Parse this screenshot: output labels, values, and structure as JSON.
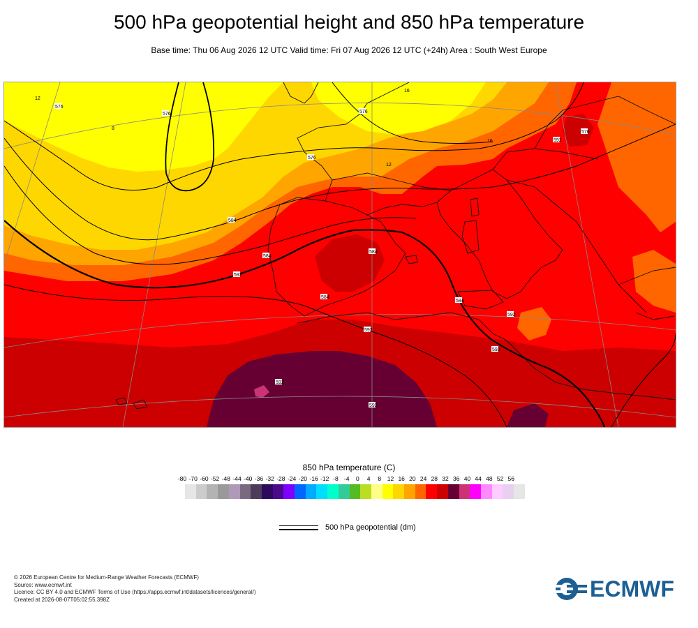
{
  "header": {
    "title": "500 hPa geopotential height and 850 hPa temperature",
    "subtitle": "Base time: Thu 06 Aug 2026 12 UTC Valid time: Fri 07 Aug 2026 12 UTC (+24h) Area : South West Europe"
  },
  "colors": {
    "band_8_12": "#ffff00",
    "band_12_16": "#ffd700",
    "band_16_20": "#ffa500",
    "band_20_24": "#ff6600",
    "band_24_28": "#ff0000",
    "band_28_32": "#cc0000",
    "band_32_36": "#660033",
    "band_36_40": "#cc3377",
    "contour": "#000000",
    "coastline": "#111111",
    "graticule": "#888888",
    "brand": "#1b5f95"
  },
  "contour_labels": [
    "576",
    "576",
    "576",
    "576",
    "576",
    "584",
    "584",
    "584",
    "584",
    "584",
    "592",
    "592",
    "592",
    "592",
    "592",
    "592",
    "592"
  ],
  "temperature_labels": [
    "12",
    "8",
    "12",
    "16",
    "16"
  ],
  "legend": {
    "title": "850 hPa temperature (C)",
    "ticks": [
      "-80",
      "-70",
      "-60",
      "-52",
      "-48",
      "-44",
      "-40",
      "-36",
      "-32",
      "-28",
      "-24",
      "-20",
      "-16",
      "-12",
      "-8",
      "-4",
      "0",
      "4",
      "8",
      "12",
      "16",
      "20",
      "24",
      "28",
      "32",
      "36",
      "40",
      "44",
      "48",
      "52",
      "56"
    ],
    "colors": [
      "#e6e6e6",
      "#cccccc",
      "#b3b3b3",
      "#999999",
      "#b099b8",
      "#7a6a80",
      "#4d3b5c",
      "#2d0a5e",
      "#4b0a8c",
      "#7e00ff",
      "#0066ff",
      "#00aaff",
      "#00ddff",
      "#00ffcc",
      "#33cc99",
      "#55bb22",
      "#bbdd22",
      "#ffff88",
      "#ffff00",
      "#ffd700",
      "#ffa500",
      "#ff6600",
      "#ff0000",
      "#cc0000",
      "#660033",
      "#cc3377",
      "#ff00ff",
      "#ff88ff",
      "#ffccff",
      "#e8d0f0",
      "#e6e6e6"
    ],
    "geopotential_label": "500 hPa geopotential (dm)"
  },
  "footer": {
    "line1": "© 2026 European Centre for Medium-Range Weather Forecasts (ECMWF)",
    "line2": "Source: www.ecmwf.int",
    "line3": "Licence: CC BY 4.0 and ECMWF Terms of Use (https://apps.ecmwf.int/datasets/licences/general/)",
    "line4": "Created at 2026-08-07T05:02:55.398Z"
  },
  "logo": {
    "text": "ECMWF",
    "icon": "ecmwf-logo-icon"
  }
}
